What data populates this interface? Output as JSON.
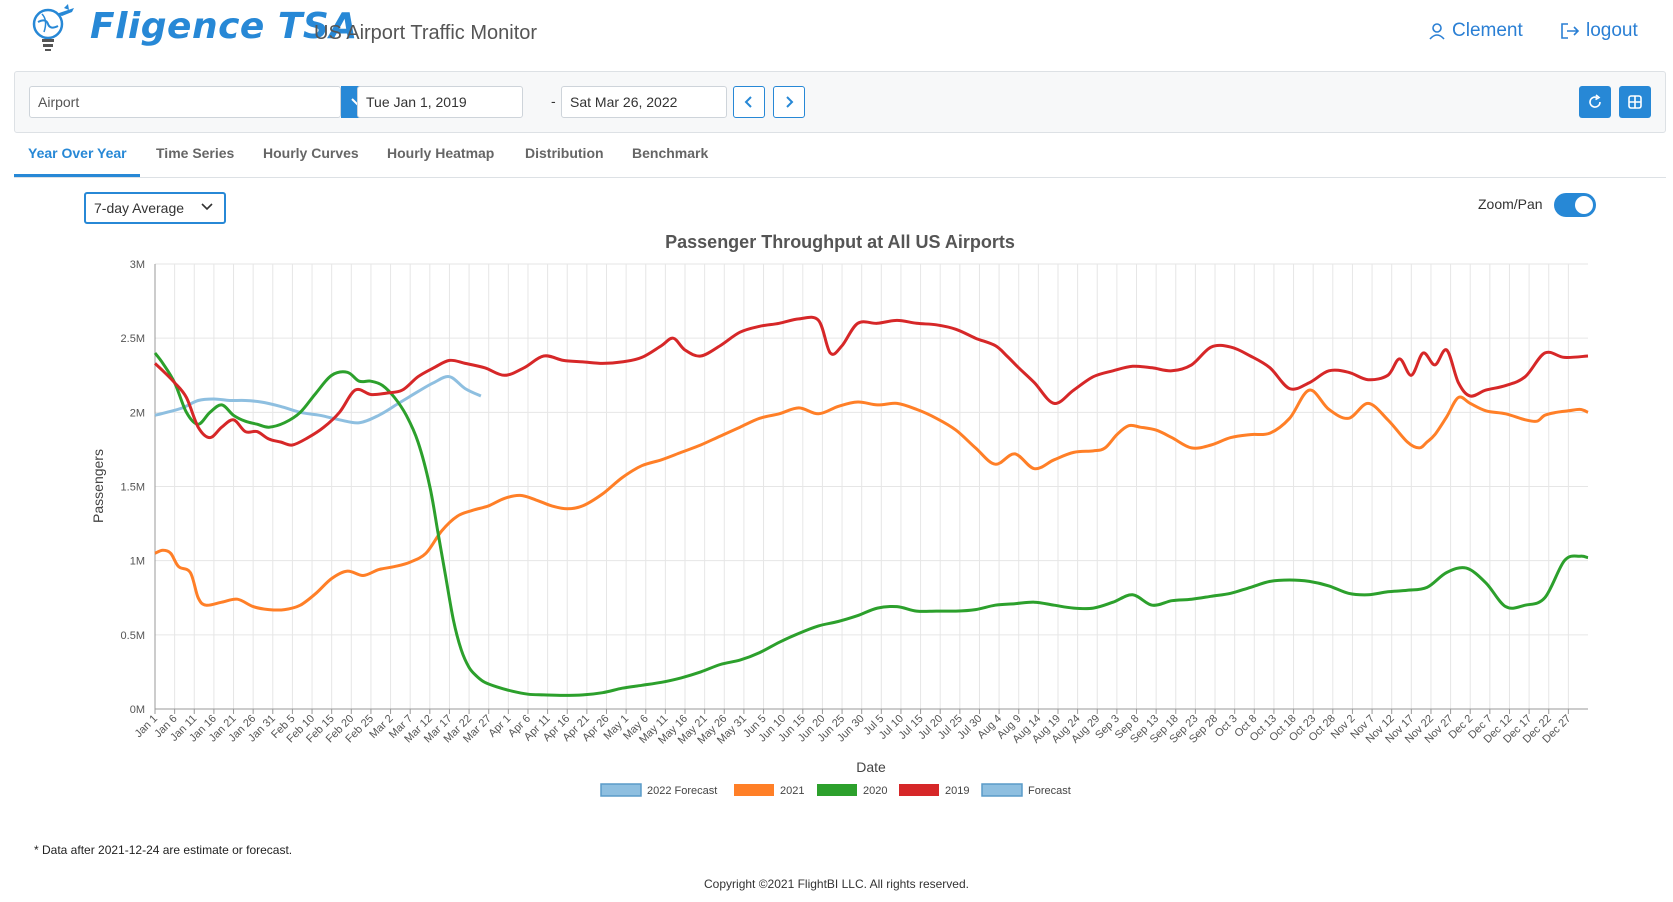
{
  "header": {
    "brand": "Fligence TSA",
    "subtitle": "US Airport Traffic Monitor",
    "user": "Clement",
    "logout": "logout"
  },
  "toolbar": {
    "airport_placeholder": "Airport",
    "start_date": "Tue Jan 1, 2019",
    "date_separator": "-",
    "end_date": "Sat Mar 26, 2022"
  },
  "tabs": [
    "Year Over Year",
    "Time Series",
    "Hourly Curves",
    "Hourly Heatmap",
    "Distribution",
    "Benchmark"
  ],
  "controls": {
    "average_select": "7-day Average",
    "zoom_label": "Zoom/Pan"
  },
  "note": "* Data after 2021-12-24 are estimate or forecast.",
  "footer": "Copyright ©2021 FlightBI LLC. All rights reserved.",
  "colors": {
    "accent": "#2788d6",
    "forecast2022": "#8ebfe0",
    "y2021": "#ff7f27",
    "y2020": "#2ca02c",
    "y2019": "#d62728",
    "forecast": "#8ebfe0"
  },
  "chart_data": {
    "type": "line",
    "title": "Passenger Throughput at All US Airports",
    "xlabel": "Date",
    "ylabel": "Passengers",
    "ylim": [
      0,
      3000000
    ],
    "yticks": [
      0,
      500000,
      1000000,
      1500000,
      2000000,
      2500000,
      3000000
    ],
    "ytick_labels": [
      "0M",
      "0.5M",
      "1M",
      "1.5M",
      "2M",
      "2.5M",
      "3M"
    ],
    "x_domain_days": [
      1,
      366
    ],
    "x_tick_labels": [
      "Jan 1",
      "Jan 6",
      "Jan 11",
      "Jan 16",
      "Jan 21",
      "Jan 26",
      "Jan 31",
      "Feb 5",
      "Feb 10",
      "Feb 15",
      "Feb 20",
      "Feb 25",
      "Mar 2",
      "Mar 7",
      "Mar 12",
      "Mar 17",
      "Mar 22",
      "Mar 27",
      "Apr 1",
      "Apr 6",
      "Apr 11",
      "Apr 16",
      "Apr 21",
      "Apr 26",
      "May 1",
      "May 6",
      "May 11",
      "May 16",
      "May 21",
      "May 26",
      "May 31",
      "Jun 5",
      "Jun 10",
      "Jun 15",
      "Jun 20",
      "Jun 25",
      "Jun 30",
      "Jul 5",
      "Jul 10",
      "Jul 15",
      "Jul 20",
      "Jul 25",
      "Jul 30",
      "Aug 4",
      "Aug 9",
      "Aug 14",
      "Aug 19",
      "Aug 24",
      "Aug 29",
      "Sep 3",
      "Sep 8",
      "Sep 13",
      "Sep 18",
      "Sep 23",
      "Sep 28",
      "Oct 3",
      "Oct 8",
      "Oct 13",
      "Oct 18",
      "Oct 23",
      "Oct 28",
      "Nov 2",
      "Nov 7",
      "Nov 12",
      "Nov 17",
      "Nov 22",
      "Nov 27",
      "Dec 2",
      "Dec 7",
      "Dec 12",
      "Dec 17",
      "Dec 22",
      "Dec 27"
    ],
    "grid": true,
    "legend_position": "bottom",
    "series": [
      {
        "name": "2022 Forecast",
        "color_key": "forecast2022",
        "x": [
          1,
          4,
          8,
          12,
          16,
          20,
          24,
          28,
          33,
          38,
          43,
          48,
          53,
          58,
          63,
          68,
          72,
          76,
          80,
          84
        ],
        "y": [
          1980000,
          2000000,
          2030000,
          2080000,
          2090000,
          2080000,
          2080000,
          2070000,
          2040000,
          2000000,
          1980000,
          1950000,
          1930000,
          1980000,
          2060000,
          2140000,
          2200000,
          2240000,
          2160000,
          2110000
        ]
      },
      {
        "name": "2021",
        "color_key": "y2021",
        "x": [
          1,
          3,
          5,
          7,
          10,
          12,
          14,
          18,
          22,
          26,
          30,
          34,
          38,
          42,
          46,
          50,
          54,
          58,
          62,
          66,
          70,
          74,
          78,
          82,
          86,
          90,
          94,
          98,
          102,
          106,
          110,
          115,
          120,
          125,
          130,
          135,
          140,
          145,
          150,
          155,
          160,
          165,
          170,
          175,
          180,
          185,
          190,
          195,
          200,
          205,
          210,
          215,
          220,
          225,
          230,
          235,
          240,
          243,
          246,
          249,
          252,
          256,
          260,
          265,
          270,
          275,
          280,
          285,
          290,
          295,
          300,
          305,
          310,
          315,
          320,
          323,
          325,
          327,
          330,
          333,
          336,
          340,
          345,
          350,
          353,
          355,
          358,
          361,
          364,
          366
        ],
        "y": [
          1050000,
          1070000,
          1050000,
          960000,
          920000,
          750000,
          700000,
          720000,
          740000,
          690000,
          670000,
          670000,
          700000,
          780000,
          880000,
          930000,
          900000,
          940000,
          960000,
          990000,
          1050000,
          1200000,
          1300000,
          1340000,
          1370000,
          1420000,
          1440000,
          1410000,
          1370000,
          1350000,
          1370000,
          1450000,
          1560000,
          1640000,
          1680000,
          1730000,
          1780000,
          1840000,
          1900000,
          1960000,
          1990000,
          2030000,
          1990000,
          2040000,
          2070000,
          2050000,
          2060000,
          2020000,
          1960000,
          1880000,
          1760000,
          1650000,
          1720000,
          1620000,
          1680000,
          1730000,
          1740000,
          1760000,
          1850000,
          1910000,
          1900000,
          1880000,
          1830000,
          1760000,
          1780000,
          1830000,
          1850000,
          1860000,
          1960000,
          2150000,
          2020000,
          1960000,
          2060000,
          1950000,
          1800000,
          1760000,
          1800000,
          1850000,
          1970000,
          2100000,
          2060000,
          2010000,
          1990000,
          1950000,
          1940000,
          1980000,
          2000000,
          2010000,
          2020000,
          2000000
        ]
      },
      {
        "name": "2020",
        "color_key": "y2020",
        "x": [
          1,
          3,
          6,
          9,
          12,
          15,
          18,
          21,
          24,
          27,
          30,
          34,
          38,
          42,
          46,
          50,
          53,
          56,
          59,
          62,
          65,
          68,
          71,
          73,
          75,
          77,
          79,
          81,
          83,
          85,
          88,
          92,
          96,
          100,
          105,
          110,
          115,
          120,
          125,
          130,
          135,
          140,
          145,
          150,
          155,
          160,
          165,
          170,
          175,
          180,
          185,
          190,
          195,
          200,
          205,
          210,
          215,
          220,
          225,
          230,
          235,
          240,
          245,
          250,
          255,
          260,
          265,
          270,
          275,
          280,
          285,
          290,
          295,
          300,
          305,
          310,
          315,
          320,
          325,
          330,
          335,
          340,
          345,
          350,
          355,
          360,
          364,
          366
        ],
        "y": [
          2400000,
          2330000,
          2200000,
          2000000,
          1920000,
          2000000,
          2050000,
          1980000,
          1940000,
          1920000,
          1900000,
          1930000,
          2000000,
          2130000,
          2250000,
          2270000,
          2210000,
          2210000,
          2180000,
          2100000,
          1980000,
          1800000,
          1500000,
          1200000,
          900000,
          600000,
          400000,
          280000,
          220000,
          180000,
          150000,
          120000,
          100000,
          95000,
          92000,
          95000,
          110000,
          140000,
          160000,
          180000,
          210000,
          250000,
          300000,
          330000,
          380000,
          450000,
          510000,
          560000,
          590000,
          630000,
          680000,
          690000,
          660000,
          660000,
          660000,
          670000,
          700000,
          710000,
          720000,
          700000,
          680000,
          680000,
          720000,
          770000,
          700000,
          730000,
          740000,
          760000,
          780000,
          820000,
          860000,
          870000,
          860000,
          830000,
          780000,
          770000,
          790000,
          800000,
          820000,
          920000,
          950000,
          850000,
          690000,
          700000,
          750000,
          1000000,
          1030000,
          1020000
        ]
      },
      {
        "name": "2019",
        "color_key": "y2019",
        "x": [
          1,
          3,
          6,
          9,
          12,
          15,
          18,
          21,
          24,
          27,
          30,
          33,
          36,
          40,
          44,
          48,
          52,
          56,
          60,
          64,
          68,
          72,
          76,
          80,
          85,
          90,
          95,
          100,
          105,
          110,
          115,
          120,
          125,
          130,
          133,
          136,
          140,
          145,
          150,
          155,
          160,
          165,
          170,
          173,
          176,
          180,
          185,
          190,
          195,
          200,
          205,
          210,
          215,
          218,
          221,
          225,
          230,
          235,
          240,
          245,
          250,
          255,
          260,
          265,
          270,
          275,
          280,
          285,
          290,
          295,
          300,
          305,
          310,
          315,
          318,
          321,
          324,
          327,
          330,
          333,
          336,
          340,
          345,
          350,
          355,
          360,
          366
        ],
        "y": [
          2330000,
          2280000,
          2200000,
          2100000,
          1900000,
          1830000,
          1900000,
          1950000,
          1870000,
          1870000,
          1820000,
          1800000,
          1780000,
          1830000,
          1900000,
          2000000,
          2150000,
          2120000,
          2130000,
          2150000,
          2240000,
          2300000,
          2350000,
          2330000,
          2300000,
          2250000,
          2300000,
          2380000,
          2350000,
          2340000,
          2330000,
          2340000,
          2370000,
          2450000,
          2500000,
          2420000,
          2380000,
          2450000,
          2540000,
          2580000,
          2600000,
          2630000,
          2620000,
          2400000,
          2450000,
          2600000,
          2600000,
          2620000,
          2600000,
          2590000,
          2560000,
          2500000,
          2450000,
          2380000,
          2300000,
          2200000,
          2060000,
          2150000,
          2240000,
          2280000,
          2310000,
          2300000,
          2280000,
          2320000,
          2440000,
          2440000,
          2380000,
          2300000,
          2160000,
          2200000,
          2280000,
          2270000,
          2220000,
          2250000,
          2360000,
          2250000,
          2400000,
          2320000,
          2420000,
          2200000,
          2110000,
          2150000,
          2180000,
          2240000,
          2400000,
          2370000,
          2380000
        ]
      },
      {
        "name": "Forecast",
        "color_key": "forecast",
        "x": [],
        "y": []
      }
    ]
  }
}
